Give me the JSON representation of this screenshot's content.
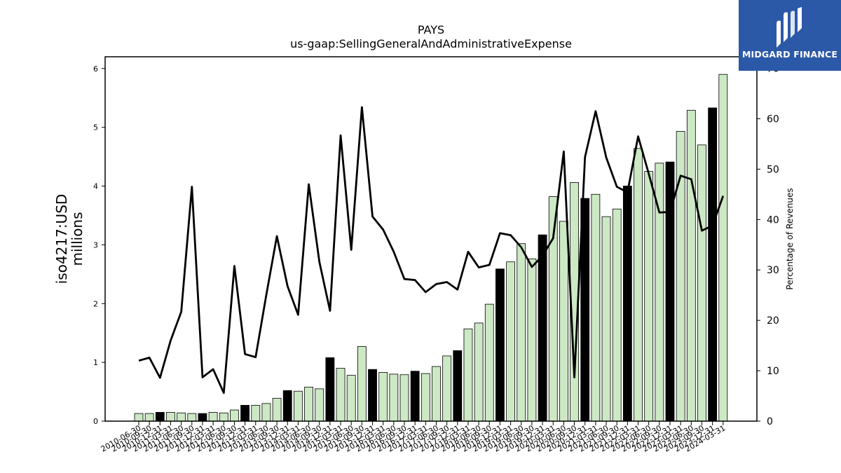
{
  "brand": {
    "name": "MIDGARD FINANCE",
    "color": "#2c58a8"
  },
  "chart_data": {
    "type": "bar",
    "title": "PAYS",
    "subtitle": "us-gaap:SellingGeneralAndAdministrativeExpense",
    "ylabel": "iso4217:USD\nmillions",
    "y2label": "Percentage of Revenues",
    "ylim": [
      0,
      6.2
    ],
    "y2lim": [
      0,
      72.3
    ],
    "yticks": [
      0,
      1,
      2,
      3,
      4,
      5,
      6
    ],
    "y2ticks": [
      0,
      10,
      20,
      30,
      40,
      50,
      60,
      70
    ],
    "categories": [
      "2010-06-30",
      "2010-09-30",
      "2010-12-31",
      "2011-03-31",
      "2011-06-30",
      "2011-09-30",
      "2011-12-31",
      "2012-03-31",
      "2012-06-30",
      "2012-09-30",
      "2012-12-31",
      "2013-03-31",
      "2013-06-30",
      "2013-09-30",
      "2013-12-31",
      "2014-03-31",
      "2014-06-30",
      "2014-09-30",
      "2014-12-31",
      "2015-03-31",
      "2015-06-30",
      "2015-09-30",
      "2015-12-31",
      "2016-03-31",
      "2016-06-30",
      "2016-09-30",
      "2016-12-31",
      "2017-03-31",
      "2017-06-30",
      "2017-09-30",
      "2017-12-31",
      "2018-03-31",
      "2018-06-30",
      "2018-09-30",
      "2018-12-31",
      "2019-03-31",
      "2019-06-30",
      "2019-09-30",
      "2019-12-31",
      "2020-03-31",
      "2020-06-30",
      "2020-09-30",
      "2020-12-31",
      "2021-03-31",
      "2021-06-30",
      "2021-09-30",
      "2021-12-31",
      "2022-03-31",
      "2022-06-30",
      "2022-09-30",
      "2022-12-31",
      "2023-03-31",
      "2023-06-30",
      "2023-09-30",
      "2023-12-31",
      "2024-03-31"
    ],
    "series": [
      {
        "kind": "bar",
        "values": [
          0.13,
          0.13,
          0.15,
          0.15,
          0.14,
          0.13,
          0.13,
          0.15,
          0.14,
          0.19,
          0.27,
          0.27,
          0.3,
          0.39,
          0.52,
          0.51,
          0.58,
          0.55,
          1.08,
          0.9,
          0.78,
          1.27,
          0.88,
          0.83,
          0.8,
          0.79,
          0.85,
          0.81,
          0.93,
          1.11,
          1.2,
          1.57,
          1.67,
          1.99,
          2.59,
          2.71,
          3.02,
          2.76,
          3.17,
          3.82,
          3.4,
          4.06,
          3.79,
          3.86,
          3.48,
          3.61,
          4.0,
          4.64,
          4.25,
          4.39,
          4.41,
          4.93,
          5.29,
          4.7,
          5.33,
          5.9
        ],
        "annual": [
          false,
          false,
          true,
          false,
          false,
          false,
          true,
          false,
          false,
          false,
          true,
          false,
          false,
          false,
          true,
          false,
          false,
          false,
          true,
          false,
          false,
          false,
          true,
          false,
          false,
          false,
          true,
          false,
          false,
          false,
          true,
          false,
          false,
          false,
          true,
          false,
          false,
          false,
          true,
          false,
          false,
          false,
          true,
          false,
          false,
          false,
          true,
          false,
          false,
          false,
          true,
          false,
          false,
          false,
          true,
          false
        ],
        "colors": {
          "quarter": "#cce8c4",
          "annual": "#000000"
        }
      },
      {
        "kind": "line",
        "axis": "right",
        "values": [
          12.0,
          12.6,
          8.6,
          16.0,
          21.7,
          46.5,
          8.7,
          10.3,
          5.6,
          30.8,
          13.3,
          12.7,
          25.0,
          36.7,
          26.8,
          21.1,
          47.0,
          31.6,
          21.9,
          56.7,
          34.0,
          62.3,
          40.6,
          38.0,
          33.6,
          28.2,
          28.0,
          25.6,
          27.2,
          27.6,
          26.1,
          33.6,
          30.5,
          31.0,
          37.3,
          36.9,
          34.5,
          30.6,
          32.8,
          36.3,
          53.5,
          8.7,
          52.4,
          61.5,
          52.3,
          46.5,
          45.4,
          56.5,
          49.1,
          41.4,
          41.5,
          48.7,
          48.0,
          37.8,
          38.8,
          44.7
        ]
      }
    ],
    "legend": "none",
    "grid": false
  }
}
